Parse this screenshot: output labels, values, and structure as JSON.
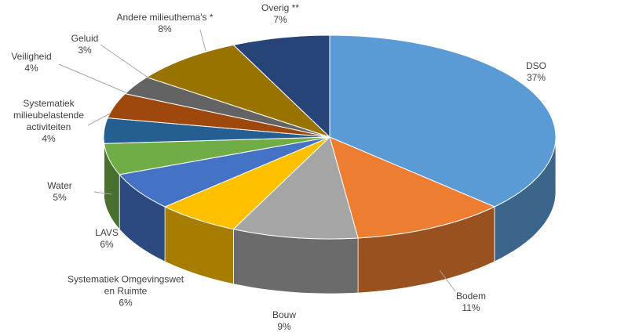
{
  "chart_data": {
    "type": "pie3d",
    "categories": [
      "DSO",
      "Bodem",
      "Bouw",
      "Systematiek Omgevingswet en Ruimte",
      "LAVS",
      "Water",
      "Systematiek milieubelastende activiteiten",
      "Veiligheid",
      "Geluid",
      "Andere milieuthema's *",
      "Overig **"
    ],
    "values": [
      37,
      11,
      9,
      6,
      6,
      5,
      4,
      4,
      3,
      8,
      7
    ],
    "value_labels": [
      "37%",
      "11%",
      "9%",
      "6%",
      "6%",
      "5%",
      "4%",
      "4%",
      "3%",
      "8%",
      "7%"
    ],
    "colors": [
      "#5b9bd5",
      "#ed7d31",
      "#a5a5a5",
      "#ffc000",
      "#4472c4",
      "#70ad47",
      "#255e91",
      "#9e480e",
      "#636363",
      "#997300",
      "#264478"
    ]
  }
}
